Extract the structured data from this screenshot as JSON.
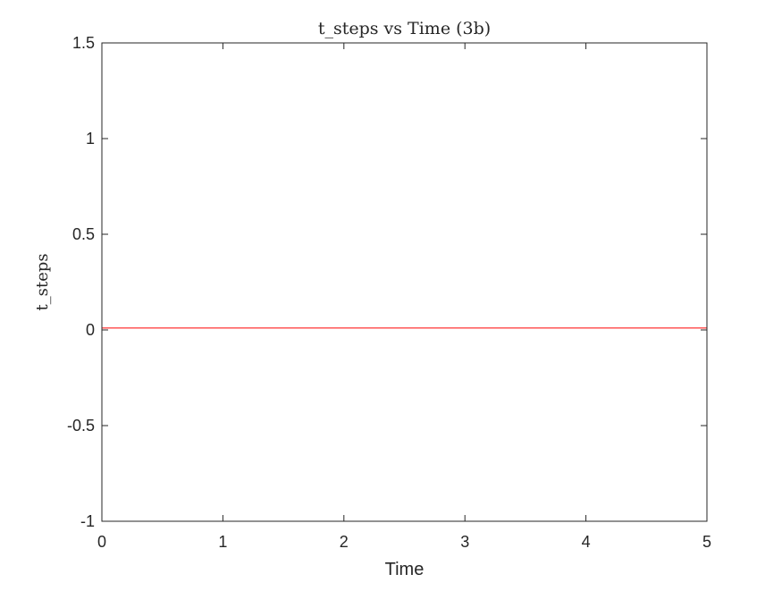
{
  "chart_data": {
    "type": "line",
    "title": "t_steps vs Time (3b)",
    "xlabel": "Time",
    "ylabel": "t_steps",
    "xlim": [
      0,
      5
    ],
    "ylim": [
      -1,
      1.5
    ],
    "x_ticks": [
      0,
      1,
      2,
      3,
      4,
      5
    ],
    "x_tick_labels": [
      "0",
      "1",
      "2",
      "3",
      "4",
      "5"
    ],
    "y_ticks": [
      -1,
      -0.5,
      0,
      0.5,
      1,
      1.5
    ],
    "y_tick_labels": [
      "-1",
      "-0.5",
      "0",
      "0.5",
      "1",
      "1.5"
    ],
    "grid": false,
    "box": true,
    "axis_color": "#262626",
    "series": [
      {
        "color": "#ff0000",
        "x": [
          0,
          5
        ],
        "y": [
          0.01,
          0.01
        ]
      }
    ]
  }
}
